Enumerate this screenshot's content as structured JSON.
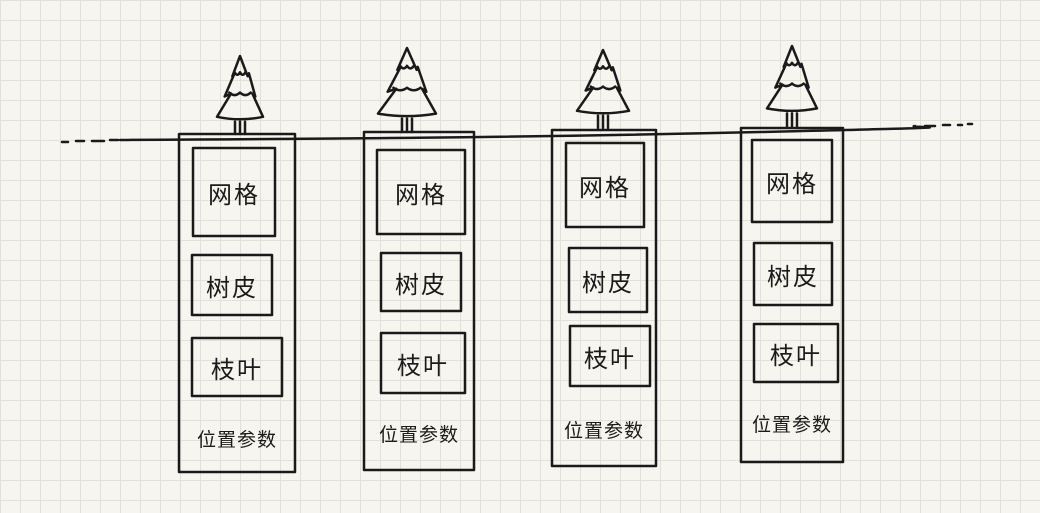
{
  "diagram": {
    "colors": {
      "ink": "#1a1a1a",
      "paper": "#f7f5ef",
      "grid": "#e3e0d8"
    },
    "columns": [
      {
        "fields": [
          "网格",
          "树皮",
          "枝叶"
        ],
        "footer": "位置参数"
      },
      {
        "fields": [
          "网格",
          "树皮",
          "枝叶"
        ],
        "footer": "位置参数"
      },
      {
        "fields": [
          "网格",
          "树皮",
          "枝叶"
        ],
        "footer": "位置参数"
      },
      {
        "fields": [
          "网格",
          "树皮",
          "枝叶"
        ],
        "footer": "位置参数"
      }
    ]
  }
}
